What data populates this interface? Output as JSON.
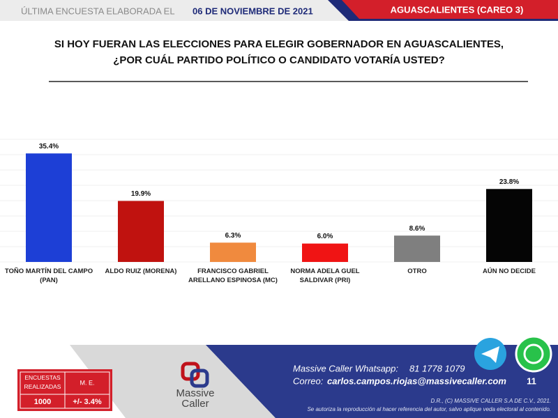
{
  "header": {
    "prefix": "ÚLTIMA ENCUESTA ELABORADA EL",
    "date": "06 DE NOVIEMBRE DE 2021",
    "region": "AGUASCALIENTES (CAREO 3)"
  },
  "chart_data": {
    "type": "bar",
    "title": "SI HOY FUERAN LAS ELECCIONES PARA ELEGIR GOBERNADOR EN AGUASCALIENTES,\n¿POR CUÁL PARTIDO POLÍTICO O CANDIDATO VOTARÍA USTED?",
    "categories": [
      "TOÑO MARTÍN DEL CAMPO\n(PAN)",
      "ALDO RUIZ (MORENA)",
      "FRANCISCO GABRIEL\nARELLANO ESPINOSA (MC)",
      "NORMA ADELA GUEL\nSALDIVAR (PRI)",
      "OTRO",
      "AÚN NO DECIDE"
    ],
    "values": [
      35.4,
      19.9,
      6.3,
      6.0,
      8.6,
      23.8
    ],
    "value_labels": [
      "35.4%",
      "19.9%",
      "6.3%",
      "6.0%",
      "8.6%",
      "23.8%"
    ],
    "colors": [
      "#1d3fd6",
      "#c0120f",
      "#f08a3e",
      "#f01414",
      "#7f7f7f",
      "#050505"
    ],
    "ylim": [
      0,
      40
    ],
    "yticks": [
      0,
      5,
      10,
      15,
      20,
      25,
      30,
      35,
      40
    ],
    "grid": true
  },
  "footer": {
    "table": {
      "headers": [
        "ENCUESTAS\nREALIZADAS",
        "M. E."
      ],
      "row": [
        "1000",
        "+/- 3.4%"
      ]
    },
    "logo": "Massive\nCaller",
    "whatsapp_label": "Massive Caller Whatsapp:",
    "whatsapp": "81 1778 1079",
    "email_label": "Correo:",
    "email": "carlos.campos.riojas@massivecaller.com",
    "page": "11",
    "copyright": "D.R., (C) MASSIVE CALLER S.A DE C.V., 2021.",
    "notice": "Se autoriza la reproducción al hacer referencia del autor, salvo aplique veda electoral al contenido."
  }
}
